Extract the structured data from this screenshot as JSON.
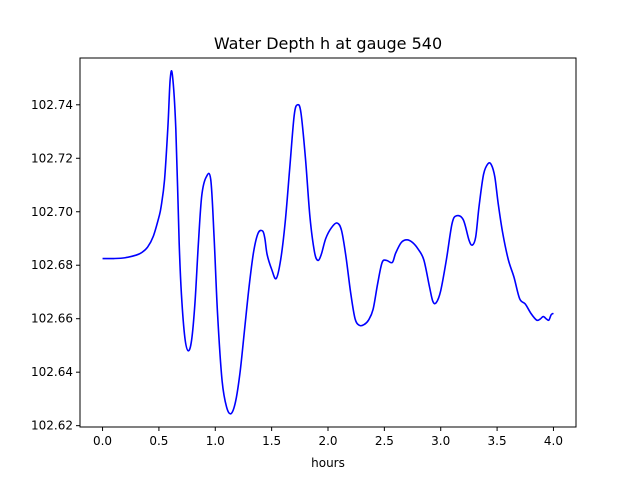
{
  "chart_data": {
    "type": "line",
    "title": "Water Depth h at gauge 540",
    "xlabel": "hours",
    "ylabel": "",
    "xlim": [
      -0.2,
      4.2
    ],
    "ylim": [
      102.6195,
      102.7575
    ],
    "xticks": [
      0.0,
      0.5,
      1.0,
      1.5,
      2.0,
      2.5,
      3.0,
      3.5,
      4.0
    ],
    "xtick_labels": [
      "0.0",
      "0.5",
      "1.0",
      "1.5",
      "2.0",
      "2.5",
      "3.0",
      "3.5",
      "4.0"
    ],
    "yticks": [
      102.62,
      102.64,
      102.66,
      102.68,
      102.7,
      102.72,
      102.74
    ],
    "ytick_labels": [
      "102.62",
      "102.64",
      "102.66",
      "102.68",
      "102.70",
      "102.72",
      "102.74"
    ],
    "grid": false,
    "series": [
      {
        "name": "",
        "color": "#0000ff",
        "x": [
          0.0,
          0.1,
          0.2,
          0.3,
          0.35,
          0.4,
          0.45,
          0.5,
          0.52,
          0.55,
          0.58,
          0.6,
          0.62,
          0.65,
          0.68,
          0.7,
          0.73,
          0.76,
          0.79,
          0.82,
          0.85,
          0.88,
          0.92,
          0.96,
          0.99,
          1.02,
          1.06,
          1.1,
          1.14,
          1.18,
          1.22,
          1.26,
          1.3,
          1.34,
          1.38,
          1.42,
          1.44,
          1.46,
          1.5,
          1.54,
          1.58,
          1.62,
          1.66,
          1.7,
          1.73,
          1.76,
          1.8,
          1.84,
          1.88,
          1.91,
          1.94,
          1.98,
          2.03,
          2.08,
          2.12,
          2.16,
          2.2,
          2.24,
          2.28,
          2.32,
          2.36,
          2.4,
          2.44,
          2.48,
          2.52,
          2.57,
          2.6,
          2.65,
          2.7,
          2.75,
          2.8,
          2.85,
          2.9,
          2.93,
          2.96,
          3.0,
          3.05,
          3.1,
          3.14,
          3.2,
          3.25,
          3.28,
          3.31,
          3.34,
          3.38,
          3.42,
          3.45,
          3.48,
          3.51,
          3.55,
          3.6,
          3.65,
          3.7,
          3.75,
          3.8,
          3.85,
          3.88,
          3.91,
          3.94,
          3.96,
          3.98,
          4.0
        ],
        "y": [
          102.6825,
          102.6825,
          102.6828,
          102.6838,
          102.6848,
          102.6868,
          102.6908,
          102.698,
          102.702,
          102.712,
          102.732,
          102.7495,
          102.751,
          102.731,
          102.688,
          102.669,
          102.653,
          102.648,
          102.652,
          102.666,
          102.688,
          102.706,
          102.713,
          102.712,
          102.69,
          102.662,
          102.637,
          102.627,
          102.6245,
          102.629,
          102.64,
          102.656,
          102.672,
          102.685,
          102.692,
          102.6928,
          102.69,
          102.684,
          102.6785,
          102.675,
          102.682,
          102.696,
          102.716,
          102.736,
          102.74,
          102.737,
          102.72,
          102.698,
          102.685,
          102.6818,
          102.684,
          102.69,
          102.694,
          102.6958,
          102.693,
          102.683,
          102.67,
          102.66,
          102.6575,
          102.6578,
          102.6595,
          102.6635,
          102.673,
          102.681,
          102.6818,
          102.681,
          102.6845,
          102.6885,
          102.6895,
          102.6885,
          102.686,
          102.682,
          102.672,
          102.6665,
          102.666,
          102.6705,
          102.682,
          102.6955,
          102.6985,
          102.697,
          102.6895,
          102.6875,
          102.6905,
          102.702,
          102.714,
          102.718,
          102.7175,
          102.713,
          102.703,
          102.692,
          102.682,
          102.6755,
          102.6675,
          102.6655,
          102.662,
          102.6595,
          102.6598,
          102.6608,
          102.6598,
          102.6595,
          102.6615,
          102.662
        ]
      }
    ]
  }
}
